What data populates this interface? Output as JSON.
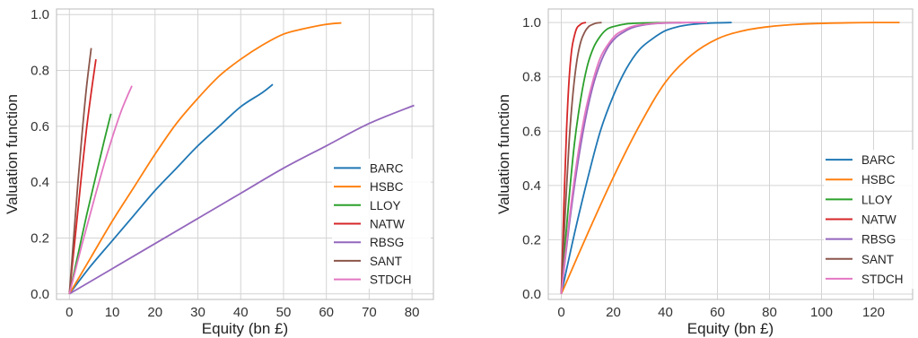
{
  "colors": {
    "BARC": "#1f77b4",
    "HSBC": "#ff7f0e",
    "LLOY": "#2ca02c",
    "NATW": "#d62728",
    "RBSG": "#9467bd",
    "SANT": "#8c564b",
    "STDCH": "#e377c2"
  },
  "chart_data": [
    {
      "type": "line",
      "xlabel": "Equity (bn £)",
      "ylabel": "Valuation function",
      "xlim": [
        -3,
        85
      ],
      "ylim": [
        -0.02,
        1.02
      ],
      "xticks": [
        0,
        10,
        20,
        30,
        40,
        50,
        60,
        70,
        80
      ],
      "yticks": [
        0.0,
        0.2,
        0.4,
        0.6,
        0.8,
        1.0
      ],
      "grid": true,
      "legend": "center-right",
      "series": [
        {
          "name": "BARC",
          "x": [
            0,
            5,
            10,
            15,
            20,
            25,
            30,
            35,
            40,
            45,
            47.5
          ],
          "y": [
            0,
            0.1,
            0.19,
            0.28,
            0.37,
            0.45,
            0.53,
            0.6,
            0.67,
            0.72,
            0.75
          ]
        },
        {
          "name": "HSBC",
          "x": [
            0,
            5,
            10,
            15,
            20,
            25,
            30,
            35,
            40,
            45,
            50,
            55,
            60,
            63.5
          ],
          "y": [
            0,
            0.13,
            0.26,
            0.38,
            0.5,
            0.61,
            0.7,
            0.78,
            0.84,
            0.89,
            0.93,
            0.95,
            0.965,
            0.97
          ]
        },
        {
          "name": "LLOY",
          "x": [
            0,
            2,
            4,
            6,
            8,
            9.7
          ],
          "y": [
            0,
            0.14,
            0.28,
            0.41,
            0.54,
            0.645
          ]
        },
        {
          "name": "NATW",
          "x": [
            0,
            1,
            2,
            3,
            4,
            5,
            6.2
          ],
          "y": [
            0,
            0.15,
            0.3,
            0.45,
            0.59,
            0.71,
            0.84
          ]
        },
        {
          "name": "RBSG",
          "x": [
            0,
            10,
            20,
            30,
            40,
            50,
            60,
            70,
            80.5
          ],
          "y": [
            0,
            0.09,
            0.18,
            0.27,
            0.36,
            0.45,
            0.53,
            0.61,
            0.675
          ]
        },
        {
          "name": "SANT",
          "x": [
            0,
            1,
            2,
            3,
            4,
            5.1
          ],
          "y": [
            0,
            0.2,
            0.4,
            0.58,
            0.74,
            0.88
          ]
        },
        {
          "name": "STDCH",
          "x": [
            0,
            3,
            6,
            9,
            12,
            14.6
          ],
          "y": [
            0,
            0.18,
            0.35,
            0.51,
            0.65,
            0.745
          ]
        }
      ]
    },
    {
      "type": "line",
      "xlabel": "Equity (bn £)",
      "ylabel": "Valuation function",
      "xlim": [
        -5,
        135
      ],
      "ylim": [
        -0.02,
        1.05
      ],
      "xticks": [
        0,
        20,
        40,
        60,
        80,
        100,
        120
      ],
      "yticks": [
        0.0,
        0.2,
        0.4,
        0.6,
        0.8,
        1.0
      ],
      "grid": true,
      "legend": "lower-right",
      "series": [
        {
          "name": "BARC",
          "x": [
            0,
            5,
            10,
            15,
            20,
            25,
            30,
            35,
            40,
            45,
            50,
            55,
            60,
            65.5
          ],
          "y": [
            0,
            0.22,
            0.42,
            0.6,
            0.73,
            0.83,
            0.9,
            0.94,
            0.97,
            0.985,
            0.993,
            0.997,
            0.999,
            1.0
          ]
        },
        {
          "name": "HSBC",
          "x": [
            0,
            10,
            20,
            30,
            40,
            50,
            60,
            70,
            80,
            90,
            100,
            110,
            120,
            130
          ],
          "y": [
            0,
            0.22,
            0.43,
            0.62,
            0.78,
            0.88,
            0.94,
            0.97,
            0.985,
            0.993,
            0.997,
            0.999,
            1.0,
            1.0
          ]
        },
        {
          "name": "LLOY",
          "x": [
            0,
            2.5,
            5,
            7.5,
            10,
            12.5,
            15,
            17.5,
            20,
            25,
            30,
            35,
            40,
            46
          ],
          "y": [
            0,
            0.3,
            0.55,
            0.72,
            0.84,
            0.91,
            0.95,
            0.975,
            0.985,
            0.995,
            0.998,
            0.999,
            1.0,
            1.0
          ]
        },
        {
          "name": "NATW",
          "x": [
            0,
            1,
            2,
            3,
            4,
            5,
            6,
            7,
            8,
            9.5
          ],
          "y": [
            0,
            0.33,
            0.6,
            0.79,
            0.9,
            0.95,
            0.98,
            0.99,
            0.997,
            1.0
          ]
        },
        {
          "name": "RBSG",
          "x": [
            0,
            3,
            6,
            9,
            12,
            15,
            18,
            21,
            24,
            27,
            30,
            35,
            40,
            45,
            50,
            56
          ],
          "y": [
            0,
            0.25,
            0.46,
            0.63,
            0.76,
            0.85,
            0.91,
            0.945,
            0.965,
            0.98,
            0.988,
            0.995,
            0.998,
            0.999,
            1.0,
            1.0
          ]
        },
        {
          "name": "SANT",
          "x": [
            0,
            1.5,
            3,
            4.5,
            6,
            7.5,
            9,
            10.5,
            12,
            13.5,
            15.5
          ],
          "y": [
            0,
            0.3,
            0.56,
            0.74,
            0.86,
            0.93,
            0.965,
            0.985,
            0.993,
            0.998,
            1.0
          ]
        },
        {
          "name": "STDCH",
          "x": [
            0,
            3,
            6,
            9,
            12,
            15,
            18,
            21,
            24,
            27,
            30,
            35,
            40,
            45,
            50,
            56
          ],
          "y": [
            0,
            0.27,
            0.49,
            0.66,
            0.78,
            0.87,
            0.92,
            0.955,
            0.972,
            0.985,
            0.991,
            0.996,
            0.999,
            1.0,
            1.0,
            1.0
          ]
        }
      ]
    }
  ]
}
